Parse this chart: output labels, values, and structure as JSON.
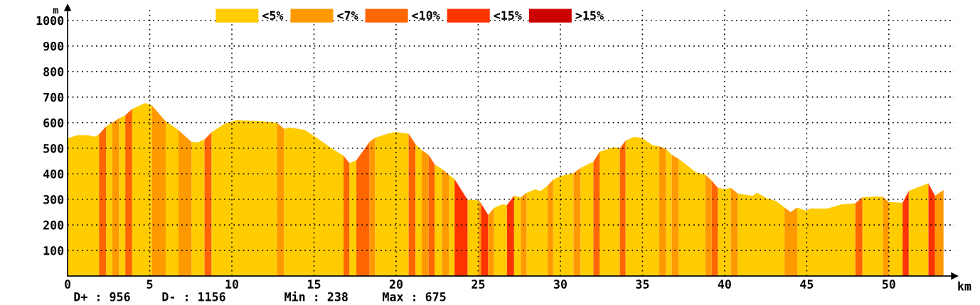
{
  "chart_data": {
    "type": "area",
    "xlabel": "km",
    "ylabel": "m",
    "xlim": [
      0,
      54
    ],
    "xticks": [
      0,
      5,
      10,
      15,
      20,
      25,
      30,
      35,
      40,
      45,
      50
    ],
    "ylim": [
      0,
      1050
    ],
    "yticks": [
      100,
      200,
      300,
      400,
      500,
      600,
      700,
      800,
      900,
      1000
    ],
    "grid": true,
    "legend": "top",
    "annotations": [
      "D+ : 956",
      "D- : 1156",
      "Min : 238",
      "Max : 675"
    ],
    "series": [
      {
        "name": "<5%",
        "color": "#ffcc00",
        "x": [
          0,
          0.6,
          1.24,
          1.67,
          1.91,
          null,
          2.34,
          2.71,
          null,
          3.13,
          3.51,
          null,
          3.93,
          4.73,
          5.13,
          null,
          5.97,
          6.75,
          null,
          7.54,
          7.9,
          8.33,
          null,
          8.76,
          9.57,
          10.29,
          11.71,
          12.74,
          null,
          13.18,
          13.56,
          14.42,
          15.02,
          16.13,
          16.8,
          null,
          17.15,
          17.58,
          null,
          18.72,
          19.47,
          20.0,
          20.76,
          null,
          21.18,
          21.56,
          null,
          22.35,
          22.79,
          null,
          23.22,
          23.56,
          null,
          24.35,
          25.03,
          null,
          25.96,
          26.45,
          26.75,
          null,
          27.18,
          27.59,
          null,
          27.95,
          28.45,
          28.8,
          29.23,
          null,
          29.56,
          30.02,
          30.8,
          null,
          31.23,
          32.01,
          null,
          32.39,
          33.29,
          33.62,
          null,
          33.97,
          34.5,
          35.0,
          35.64,
          36.0,
          null,
          36.43,
          36.78,
          null,
          37.21,
          38.28,
          38.82,
          null,
          39.59,
          40.06,
          40.38,
          null,
          40.81,
          41.7,
          41.98,
          42.55,
          43.12,
          43.65,
          null,
          44.43,
          44.97,
          45.2,
          46.26,
          47.11,
          47.96,
          null,
          48.39,
          49.25,
          49.64,
          null,
          50.0,
          50.84,
          null,
          51.21,
          52.41
        ],
        "values": [
          539,
          551,
          551,
          545,
          555,
          null,
          585,
          600,
          null,
          617,
          629,
          null,
          654,
          677,
          668,
          null,
          605,
          571,
          null,
          525,
          523,
          534,
          null,
          562,
          596,
          610,
          606,
          600,
          null,
          576,
          581,
          571,
          548,
          497,
          471,
          null,
          442,
          453,
          null,
          541,
          557,
          564,
          557,
          null,
          516,
          493,
          null,
          437,
          419,
          null,
          396,
          379,
          null,
          299,
          296,
          null,
          266,
          280,
          278,
          null,
          314,
          308,
          null,
          326,
          339,
          333,
          354,
          null,
          377,
          391,
          403,
          null,
          423,
          447,
          null,
          486,
          505,
          499,
          null,
          530,
          545,
          539,
          511,
          508,
          null,
          497,
          474,
          null,
          458,
          405,
          397,
          null,
          345,
          340,
          345,
          null,
          322,
          314,
          326,
          305,
          294,
          268,
          null,
          268,
          255,
          264,
          264,
          280,
          285,
          null,
          308,
          311,
          310,
          null,
          289,
          287,
          null,
          333,
          363
        ]
      },
      {
        "name": "<7%",
        "color": "#ff9900",
        "x": [
          2.71,
          3.13,
          null,
          5.13,
          5.97,
          null,
          6.75,
          7.54,
          null,
          12.74,
          13.18,
          null,
          18.38,
          18.72,
          null,
          21.56,
          21.98,
          null,
          22.79,
          23.22,
          null,
          25.03,
          25.17,
          null,
          25.6,
          25.96,
          null,
          27.59,
          27.95,
          null,
          29.23,
          29.56,
          null,
          30.8,
          31.23,
          null,
          36.0,
          36.43,
          null,
          36.78,
          37.21,
          null,
          38.82,
          39.22,
          null,
          40.38,
          40.81,
          null,
          43.65,
          44.02,
          44.43,
          null,
          49.64,
          50.0,
          null,
          52.81,
          53.33
        ],
        "values": [
          600,
          617,
          null,
          668,
          605,
          null,
          571,
          525,
          null,
          600,
          576,
          null,
          525,
          541,
          null,
          493,
          474,
          null,
          419,
          396,
          null,
          296,
          285,
          null,
          239,
          266,
          null,
          308,
          326,
          null,
          354,
          377,
          null,
          403,
          423,
          null,
          508,
          497,
          null,
          474,
          458,
          null,
          397,
          373,
          null,
          345,
          322,
          null,
          268,
          250,
          268,
          null,
          310,
          289,
          null,
          314,
          336
        ]
      },
      {
        "name": "<10%",
        "color": "#ff6600",
        "x": [
          1.91,
          2.34,
          null,
          3.51,
          3.93,
          null,
          8.33,
          8.76,
          null,
          16.8,
          17.15,
          null,
          17.58,
          18.38,
          null,
          20.76,
          21.18,
          null,
          21.98,
          22.35,
          null,
          32.01,
          32.39,
          null,
          33.62,
          33.97,
          null,
          39.22,
          39.59,
          null,
          47.96,
          48.39
        ],
        "values": [
          555,
          585,
          null,
          629,
          654,
          null,
          534,
          562,
          null,
          471,
          442,
          null,
          453,
          525,
          null,
          557,
          516,
          null,
          474,
          437,
          null,
          447,
          486,
          null,
          499,
          530,
          null,
          373,
          345,
          null,
          285,
          308
        ]
      },
      {
        "name": "<15%",
        "color": "#ff3300",
        "x": [
          23.56,
          24.35,
          null,
          25.17,
          25.6,
          null,
          26.75,
          27.18,
          null,
          50.84,
          51.21,
          null,
          52.41,
          52.81
        ],
        "values": [
          379,
          299,
          null,
          285,
          239,
          null,
          278,
          314,
          null,
          287,
          333,
          null,
          363,
          314
        ]
      },
      {
        "name": ">15%",
        "color": "#cc0000"
      }
    ]
  }
}
